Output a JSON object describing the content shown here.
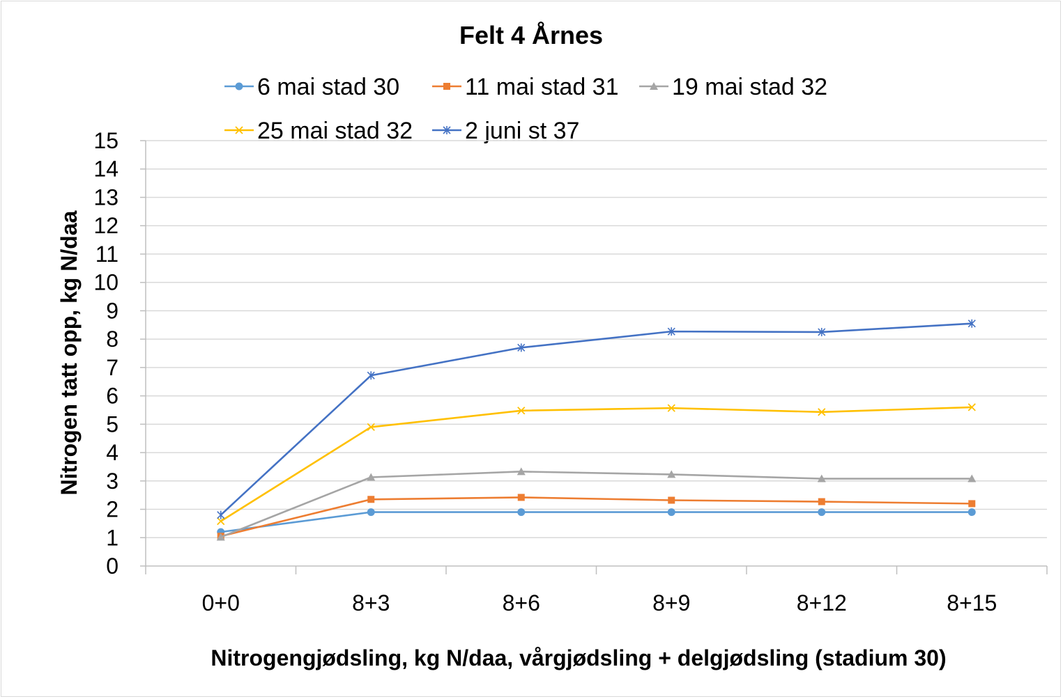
{
  "chart_data": {
    "type": "line",
    "title": "Felt 4 Årnes",
    "xlabel": "Nitrogengjødsling, kg N/daa, vårgjødsling + delgjødsling (stadium 30)",
    "ylabel": "Nitrogen tatt opp, kg N/daa",
    "ylim": [
      0,
      15
    ],
    "yticks": [
      "0",
      "1",
      "2",
      "3",
      "4",
      "5",
      "6",
      "7",
      "8",
      "9",
      "10",
      "11",
      "12",
      "13",
      "14",
      "15"
    ],
    "categories": [
      "0+0",
      "8+3",
      "8+6",
      "8+9",
      "8+12",
      "8+15"
    ],
    "grid": true,
    "legend_position": "top",
    "series": [
      {
        "name": "6 mai stad 30",
        "color": "#5b9bd5",
        "marker": "circle",
        "values": [
          1.2,
          1.9,
          1.9,
          1.9,
          1.9,
          1.9
        ]
      },
      {
        "name": "11 mai stad 31",
        "color": "#ed7d31",
        "marker": "square",
        "values": [
          1.05,
          2.35,
          2.42,
          2.32,
          2.27,
          2.2
        ]
      },
      {
        "name": "19 mai stad 32",
        "color": "#a5a5a5",
        "marker": "triangle",
        "values": [
          1.02,
          3.13,
          3.33,
          3.23,
          3.08,
          3.08
        ]
      },
      {
        "name": "25 mai stad 32",
        "color": "#ffc000",
        "marker": "x",
        "values": [
          1.58,
          4.9,
          5.48,
          5.57,
          5.43,
          5.6
        ]
      },
      {
        "name": "2 juni st 37",
        "color": "#4472c4",
        "marker": "star",
        "values": [
          1.8,
          6.72,
          7.7,
          8.27,
          8.25,
          8.55
        ]
      }
    ]
  }
}
